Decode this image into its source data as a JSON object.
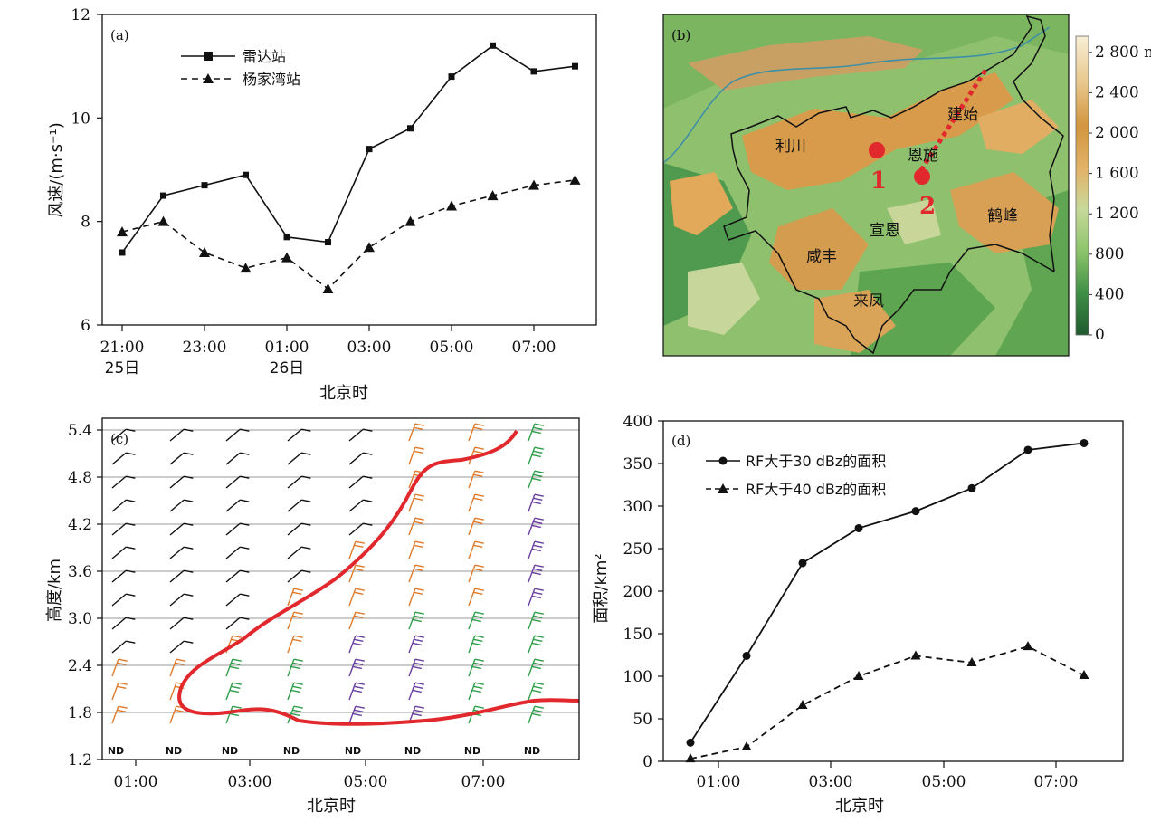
{
  "colors": {
    "line": "#111111",
    "red": "#e0282d",
    "orange": "#e07a2a",
    "green": "#2e9e4a",
    "purple": "#6a3fa0",
    "black_barb": "#111111",
    "terrain_low": "#2f7a3e",
    "terrain_mid": "#9cc878",
    "terrain_high": "#d49a4c",
    "terrain_peak": "#f2e6c2"
  },
  "chart_data": [
    {
      "panel": "(a)",
      "type": "line",
      "x": [
        "21:00",
        "22:00",
        "23:00",
        "00:00",
        "01:00",
        "02:00",
        "03:00",
        "04:00",
        "05:00",
        "06:00",
        "07:00",
        "08:00"
      ],
      "x_tick_labels": [
        {
          "line1": "21:00",
          "line2": "25日"
        },
        {
          "line1": "23:00",
          "line2": ""
        },
        {
          "line1": "01:00",
          "line2": "26日"
        },
        {
          "line1": "03:00",
          "line2": ""
        },
        {
          "line1": "05:00",
          "line2": ""
        },
        {
          "line1": "07:00",
          "line2": ""
        }
      ],
      "series": [
        {
          "name": "雷达站",
          "marker": "square",
          "dash": "solid",
          "values": [
            7.4,
            8.5,
            8.7,
            8.9,
            7.7,
            7.6,
            9.4,
            9.8,
            10.8,
            11.4,
            10.9,
            11.0
          ]
        },
        {
          "name": "杨家湾站",
          "marker": "triangle",
          "dash": "dashed",
          "values": [
            7.8,
            8.0,
            7.4,
            7.1,
            7.3,
            6.7,
            7.5,
            8.0,
            8.3,
            8.5,
            8.7,
            8.8
          ]
        }
      ],
      "ylim": [
        6,
        12
      ],
      "y_ticks": [
        "6",
        "8",
        "10",
        "12"
      ],
      "xlabel": "北京时",
      "ylabel": "风速/(m·s⁻¹)"
    },
    {
      "panel": "(b)",
      "type": "map",
      "colorbar_labels": [
        "0",
        "400",
        "800",
        "1 200",
        "1 600",
        "2 000",
        "2 400",
        "2 800 m"
      ],
      "place_names": [
        "利川",
        "恩施",
        "建始",
        "宣恩",
        "咸丰",
        "鹤峰",
        "来凤"
      ],
      "site_labels": [
        "1",
        "2"
      ]
    },
    {
      "panel": "(c)",
      "type": "wind-barb",
      "x_ticks": [
        "01:00",
        "03:00",
        "05:00",
        "07:00"
      ],
      "y_ticks": [
        "1.2",
        "1.8",
        "2.4",
        "3.0",
        "3.6",
        "4.2",
        "4.8",
        "5.4"
      ],
      "ylim": [
        1.2,
        5.4
      ],
      "xlabel": "北京时",
      "ylabel": "高度/km",
      "nd_label": "ND",
      "time_columns": [
        "00:30",
        "01:30",
        "02:30",
        "03:30",
        "04:30",
        "05:30",
        "06:30",
        "07:30"
      ],
      "barb_levels_km": [
        1.5,
        1.8,
        2.1,
        2.4,
        2.7,
        3.0,
        3.3,
        3.6,
        3.9,
        4.2,
        4.5,
        4.8,
        5.1,
        5.4
      ]
    },
    {
      "panel": "(d)",
      "type": "line",
      "x_ticks": [
        "01:00",
        "03:00",
        "05:00",
        "07:00"
      ],
      "x": [
        "00:30",
        "01:30",
        "02:30",
        "03:30",
        "04:30",
        "05:30",
        "06:30",
        "07:30"
      ],
      "series": [
        {
          "name": "RF大于30 dBz的面积",
          "marker": "circle",
          "dash": "solid",
          "values": [
            22,
            124,
            233,
            274,
            294,
            321,
            366,
            374
          ]
        },
        {
          "name": "RF大于40 dBz的面积",
          "marker": "triangle",
          "dash": "dashed",
          "values": [
            3,
            17,
            66,
            100,
            124,
            116,
            135,
            101
          ]
        }
      ],
      "ylim": [
        0,
        400
      ],
      "y_ticks": [
        "0",
        "50",
        "100",
        "150",
        "200",
        "250",
        "300",
        "350",
        "400"
      ],
      "xlabel": "北京时",
      "ylabel": "面积/km²"
    }
  ]
}
